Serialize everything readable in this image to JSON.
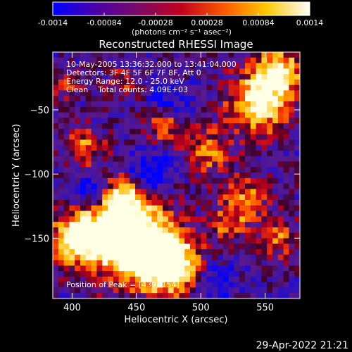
{
  "chart_data": {
    "type": "heatmap",
    "title": "Reconstructed RHESSI Image",
    "xlabel": "Heliocentric X (arcsec)",
    "ylabel": "Heliocentric Y (arcsec)",
    "xlim": [
      385,
      577
    ],
    "ylim": [
      -197,
      -5
    ],
    "x_ticks": [
      400,
      450,
      500,
      550
    ],
    "y_ticks": [
      -50,
      -100,
      -150
    ],
    "colorbar": {
      "min": -0.0014,
      "max": 0.0014,
      "ticks": [
        "-0.0014",
        "-0.00084",
        "-0.00028",
        "0.00028",
        "0.00084",
        "0.0014"
      ],
      "unit_label": "(photons cm⁻² s⁻¹ asec⁻²)",
      "colors": [
        "#0000ff",
        "#4b00a8",
        "#7a0a66",
        "#c2001e",
        "#ff5a00",
        "#ffc800",
        "#ffffff"
      ]
    },
    "annotations": [
      "10-May-2005 13:36:32.000 to 13:41:04.000",
      "Detectors: 3F 4F 5F 6F 7F 8F, Att 0",
      "Energy Range: 12.0 - 25.0 keV",
      "Clean    Total counts: 4.09E+03"
    ],
    "peak_label": "Position of Peak = [439,-154]",
    "peak_position": [
      439,
      -154
    ],
    "grid": false,
    "sources": [
      {
        "x": 445,
        "y": -150,
        "amp": 1.0,
        "sigma": 22
      },
      {
        "x": 475,
        "y": -170,
        "amp": 0.9,
        "sigma": 16
      },
      {
        "x": 405,
        "y": -150,
        "amp": 0.75,
        "sigma": 14
      },
      {
        "x": 440,
        "y": -118,
        "amp": 0.55,
        "sigma": 12
      },
      {
        "x": 410,
        "y": -80,
        "amp": 0.45,
        "sigma": 10
      },
      {
        "x": 505,
        "y": -82,
        "amp": 0.45,
        "sigma": 12
      },
      {
        "x": 470,
        "y": -62,
        "amp": 0.4,
        "sigma": 10
      },
      {
        "x": 545,
        "y": -45,
        "amp": 0.75,
        "sigma": 16
      },
      {
        "x": 560,
        "y": -20,
        "amp": 0.7,
        "sigma": 12
      },
      {
        "x": 535,
        "y": -120,
        "amp": 0.45,
        "sigma": 12
      },
      {
        "x": 560,
        "y": -150,
        "amp": 0.4,
        "sigma": 10
      },
      {
        "x": 520,
        "y": -140,
        "amp": 0.35,
        "sigma": 10
      },
      {
        "x": 395,
        "y": -30,
        "amp": 0.3,
        "sigma": 8
      },
      {
        "x": 440,
        "y": -30,
        "amp": 0.3,
        "sigma": 8
      }
    ],
    "cold_spots": [
      {
        "x": 460,
        "y": -100,
        "amp": 0.45,
        "sigma": 12
      },
      {
        "x": 415,
        "y": -112,
        "amp": 0.35,
        "sigma": 10
      },
      {
        "x": 512,
        "y": -185,
        "amp": 0.35,
        "sigma": 10
      },
      {
        "x": 475,
        "y": -40,
        "amp": 0.3,
        "sigma": 10
      }
    ]
  },
  "footer": {
    "timestamp": "29-Apr-2022 21:21"
  }
}
